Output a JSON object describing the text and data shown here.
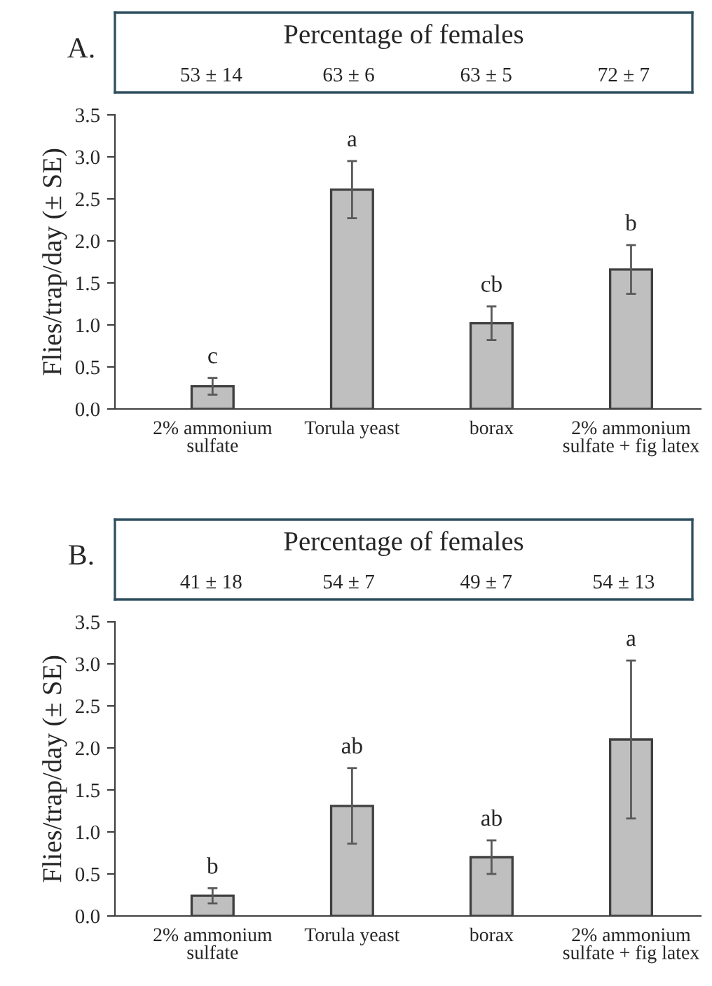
{
  "chart_data": [
    {
      "type": "bar",
      "title": "A.",
      "ylabel": "Flies/trap/day (± SE)",
      "categories": [
        "2% ammonium\nsulfate",
        "Torula yeast",
        "borax",
        "2% ammonium\nsulfate + fig latex"
      ],
      "values": [
        0.27,
        2.61,
        1.02,
        1.66
      ],
      "errors": [
        0.1,
        0.34,
        0.2,
        0.29
      ],
      "color": "#bfbfbf",
      "ylim": [
        0,
        3.5
      ],
      "yticks": [
        {
          "value": 0,
          "label": "0.0"
        },
        {
          "value": 0.5,
          "label": "0.5"
        },
        {
          "value": 1,
          "label": "1.0"
        },
        {
          "value": 1.5,
          "label": "1.5"
        },
        {
          "value": 2,
          "label": "2.0"
        },
        {
          "value": 2.5,
          "label": "2.5"
        },
        {
          "value": 3,
          "label": "3.0"
        },
        {
          "value": 3.5,
          "label": "3.5"
        }
      ],
      "grid": false,
      "legend": false,
      "annotations": [
        "Percentage of females",
        "53 ± 14",
        "63 ± 6",
        "63 ± 5",
        "72 ± 7",
        {
          "text": "c",
          "x": "2% ammonium\nsulfate",
          "y": 0.37
        },
        {
          "text": "a",
          "x": "Torula yeast",
          "y": 2.95
        },
        {
          "text": "cb",
          "x": "borax",
          "y": 1.22
        },
        {
          "text": "b",
          "x": "2% ammonium\nsulfate + fig latex",
          "y": 1.95
        }
      ]
    },
    {
      "type": "bar",
      "title": "B.",
      "ylabel": "Flies/trap/day (± SE)",
      "categories": [
        "2% ammonium\nsulfate",
        "Torula yeast",
        "borax",
        "2% ammonium\nsulfate + fig latex"
      ],
      "values": [
        0.24,
        1.31,
        0.7,
        2.1
      ],
      "errors": [
        0.09,
        0.45,
        0.2,
        0.94
      ],
      "color": "#bfbfbf",
      "ylim": [
        0,
        3.5
      ],
      "yticks": [
        {
          "value": 0,
          "label": "0.0"
        },
        {
          "value": 0.5,
          "label": "0.5"
        },
        {
          "value": 1,
          "label": "1.0"
        },
        {
          "value": 1.5,
          "label": "1.5"
        },
        {
          "value": 2,
          "label": "2.0"
        },
        {
          "value": 2.5,
          "label": "2.5"
        },
        {
          "value": 3,
          "label": "3.0"
        },
        {
          "value": 3.5,
          "label": "3.5"
        }
      ],
      "grid": false,
      "legend": false,
      "annotations": [
        "Percentage of females",
        "41 ± 18",
        "54 ± 7",
        "49 ± 7",
        "54 ± 13",
        {
          "text": "b",
          "x": "2% ammonium\nsulfate",
          "y": 0.33
        },
        {
          "text": "ab",
          "x": "Torula yeast",
          "y": 1.76
        },
        {
          "text": "ab",
          "x": "borax",
          "y": 0.9
        },
        {
          "text": "a",
          "x": "2% ammonium\nsulfate + fig latex",
          "y": 3.04
        }
      ]
    }
  ]
}
